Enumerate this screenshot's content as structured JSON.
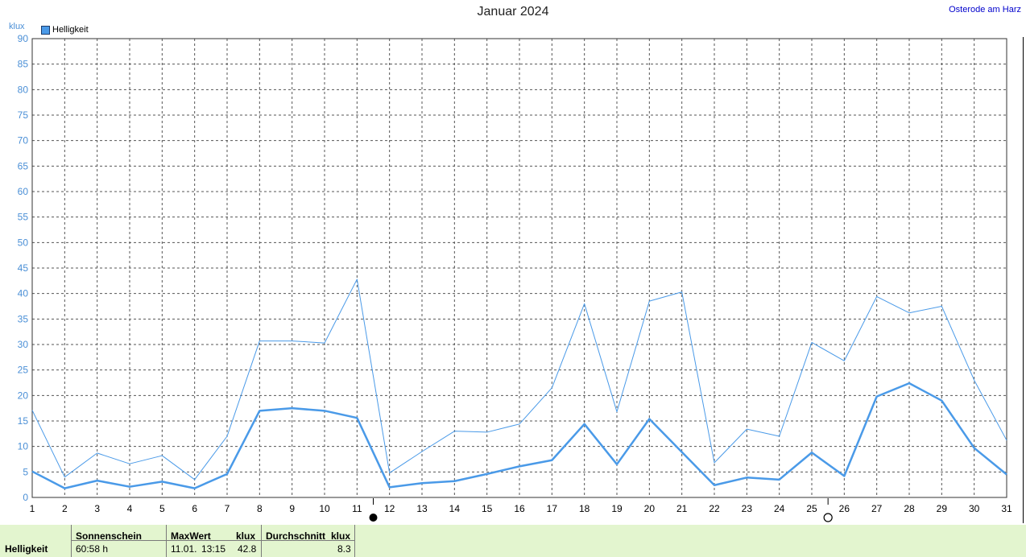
{
  "header": {
    "title": "Januar 2024",
    "location": "Osterode am Harz",
    "unit": "klux"
  },
  "legend": {
    "label": "Helligkeit",
    "color": "#4a9ae8"
  },
  "chart_data": {
    "type": "line",
    "title": "Januar 2024",
    "ylabel": "klux",
    "ylim": [
      0,
      90
    ],
    "xlim": [
      1,
      31
    ],
    "grid": true,
    "legend_position": "top-left",
    "x": [
      1,
      2,
      3,
      4,
      5,
      6,
      7,
      8,
      9,
      10,
      11,
      12,
      13,
      14,
      15,
      16,
      17,
      18,
      19,
      20,
      21,
      22,
      23,
      24,
      25,
      26,
      27,
      28,
      29,
      30,
      31
    ],
    "yticks": [
      0,
      5,
      10,
      15,
      20,
      25,
      30,
      35,
      40,
      45,
      50,
      55,
      60,
      65,
      70,
      75,
      80,
      85,
      90
    ],
    "xtick_labels": [
      "1",
      "2",
      "3",
      "4",
      "5",
      "6",
      "7",
      "8",
      "9",
      "10",
      "11",
      "12",
      "13",
      "14",
      "15",
      "16",
      "17",
      "18",
      "19",
      "20",
      "21",
      "22",
      "23",
      "24",
      "25",
      "26",
      "27",
      "28",
      "29",
      "30",
      "31"
    ],
    "series": [
      {
        "name": "Helligkeit",
        "role": "max",
        "color": "#4a9ae8",
        "values": [
          17.1,
          4.0,
          8.7,
          6.6,
          8.2,
          3.5,
          12.0,
          30.7,
          30.7,
          30.3,
          42.8,
          4.8,
          9.0,
          13.0,
          12.8,
          14.4,
          21.5,
          38.0,
          16.8,
          38.5,
          40.3,
          6.8,
          13.4,
          12.0,
          30.4,
          26.8,
          39.4,
          36.2,
          37.5,
          23.0,
          11.2
        ]
      },
      {
        "name": "Helligkeit",
        "role": "average",
        "color": "#4a9ae8",
        "values": [
          5.1,
          1.8,
          3.3,
          2.1,
          3.1,
          1.8,
          4.6,
          17.0,
          17.5,
          17.0,
          15.6,
          2.0,
          2.8,
          3.2,
          4.6,
          6.1,
          7.3,
          14.4,
          6.5,
          15.4,
          8.9,
          2.4,
          3.9,
          3.5,
          8.8,
          4.2,
          19.8,
          22.4,
          19.0,
          9.7,
          4.5
        ]
      }
    ],
    "markers": [
      {
        "x": 11.5,
        "symbol": "new-moon"
      },
      {
        "x": 25.5,
        "symbol": "full-moon"
      }
    ]
  },
  "footer": {
    "row_label": "Helligkeit",
    "sunshine_header": "Sonnenschein",
    "sunshine_value": "60:58 h",
    "max_header": "MaxWert",
    "max_unit": "klux",
    "max_date": "11.01.",
    "max_time": "13:15",
    "max_value": "42.8",
    "avg_header": "Durchschnitt",
    "avg_unit": "klux",
    "avg_value": "8.3"
  }
}
